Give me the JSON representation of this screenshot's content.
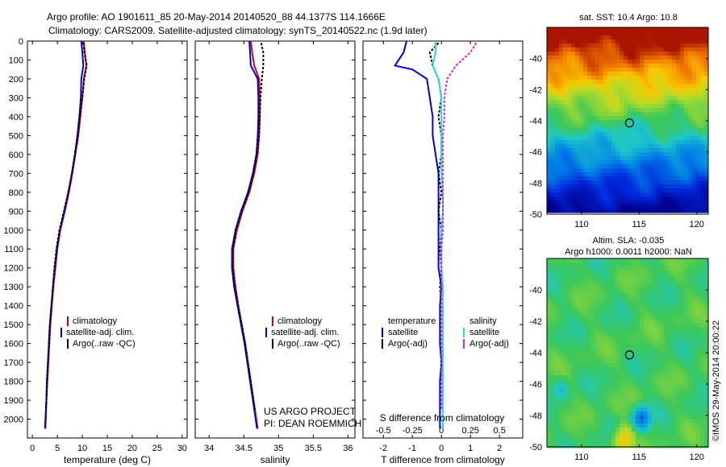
{
  "header": {
    "line1": "Argo profile: AO 1901611_85 20-May-2014 20140520_88 44.1377S 114.1666E",
    "line2": "Climatology: CARS2009. Satellite-adjusted climatology: synTS_20140522.nc (1.9d later)"
  },
  "colors": {
    "climatology": "#dd0000",
    "satellite": "#0000dd",
    "argo": "#000000",
    "sat_sal": "#22dddd",
    "argo_sal": "#dd22dd"
  },
  "chart_data": [
    {
      "type": "line",
      "id": "temperature",
      "xlabel": "temperature (deg C)",
      "ylim": [
        2100,
        0
      ],
      "xlim": [
        -1,
        31
      ],
      "xticks": [
        0,
        5,
        10,
        15,
        20,
        25,
        30
      ],
      "yticks": [
        0,
        100,
        200,
        300,
        400,
        500,
        600,
        700,
        800,
        900,
        1000,
        1100,
        1200,
        1300,
        1400,
        1500,
        1600,
        1700,
        1800,
        1900,
        2000
      ],
      "legend": [
        "climatology",
        "satellite-adj. clim.",
        "Argo(..raw -QC)"
      ],
      "series": [
        {
          "name": "climatology",
          "color": "#dd0000",
          "points": [
            [
              10.3,
              0
            ],
            [
              10.5,
              60
            ],
            [
              10.8,
              130
            ],
            [
              10.3,
              200
            ],
            [
              10.0,
              300
            ],
            [
              9.6,
              400
            ],
            [
              9.2,
              500
            ],
            [
              8.6,
              600
            ],
            [
              8.0,
              700
            ],
            [
              7.3,
              800
            ],
            [
              6.5,
              900
            ],
            [
              5.6,
              1000
            ],
            [
              5.0,
              1100
            ],
            [
              4.6,
              1200
            ],
            [
              4.2,
              1300
            ],
            [
              3.9,
              1400
            ],
            [
              3.6,
              1500
            ],
            [
              3.4,
              1600
            ],
            [
              3.2,
              1700
            ],
            [
              3.0,
              1800
            ],
            [
              2.8,
              1900
            ],
            [
              2.7,
              2000
            ],
            [
              2.6,
              2050
            ]
          ]
        },
        {
          "name": "satellite-adj. clim.",
          "color": "#0000dd",
          "points": [
            [
              9.8,
              0
            ],
            [
              10.0,
              60
            ],
            [
              10.2,
              130
            ],
            [
              9.8,
              200
            ],
            [
              9.7,
              300
            ],
            [
              9.4,
              400
            ],
            [
              9.0,
              500
            ],
            [
              8.5,
              600
            ],
            [
              7.9,
              700
            ],
            [
              7.2,
              800
            ],
            [
              6.4,
              900
            ],
            [
              5.5,
              1000
            ],
            [
              4.9,
              1100
            ],
            [
              4.5,
              1200
            ],
            [
              4.1,
              1300
            ],
            [
              3.8,
              1400
            ],
            [
              3.5,
              1500
            ],
            [
              3.3,
              1600
            ],
            [
              3.1,
              1700
            ],
            [
              2.9,
              1800
            ],
            [
              2.8,
              1900
            ],
            [
              2.6,
              2000
            ],
            [
              2.5,
              2050
            ]
          ]
        },
        {
          "name": "Argo(..raw -QC)",
          "color": "#000000",
          "dashed": true,
          "points": [
            [
              10.2,
              10
            ],
            [
              10.4,
              60
            ],
            [
              10.9,
              130
            ],
            [
              10.4,
              200
            ],
            [
              10.0,
              300
            ],
            [
              9.5,
              400
            ],
            [
              9.1,
              500
            ],
            [
              8.5,
              600
            ],
            [
              7.9,
              700
            ],
            [
              7.2,
              800
            ],
            [
              6.3,
              900
            ],
            [
              5.4,
              1000
            ],
            [
              4.8,
              1100
            ],
            [
              4.4,
              1200
            ],
            [
              4.1,
              1300
            ],
            [
              3.8,
              1400
            ],
            [
              3.5,
              1500
            ],
            [
              3.3,
              1600
            ],
            [
              3.1,
              1700
            ],
            [
              2.9,
              1800
            ],
            [
              2.8,
              1900
            ],
            [
              2.7,
              1950
            ]
          ]
        }
      ]
    },
    {
      "type": "line",
      "id": "salinity",
      "xlabel": "salinity",
      "ylim": [
        2100,
        0
      ],
      "xlim": [
        33.8,
        36.1
      ],
      "xticks": [
        34,
        34.5,
        35,
        35.5,
        36
      ],
      "legend": [
        "climatology",
        "satellite-adj. clim.",
        "Argo(..raw -QC)"
      ],
      "annotation": [
        "US ARGO PROJECT",
        "PI: DEAN ROEMMICH"
      ],
      "series": [
        {
          "name": "climatology",
          "color": "#dd0000",
          "points": [
            [
              34.6,
              0
            ],
            [
              34.62,
              60
            ],
            [
              34.65,
              130
            ],
            [
              34.72,
              200
            ],
            [
              34.73,
              300
            ],
            [
              34.73,
              400
            ],
            [
              34.72,
              500
            ],
            [
              34.7,
              600
            ],
            [
              34.65,
              700
            ],
            [
              34.58,
              800
            ],
            [
              34.48,
              900
            ],
            [
              34.4,
              1000
            ],
            [
              34.35,
              1100
            ],
            [
              34.35,
              1200
            ],
            [
              34.38,
              1300
            ],
            [
              34.42,
              1400
            ],
            [
              34.47,
              1500
            ],
            [
              34.52,
              1600
            ],
            [
              34.56,
              1700
            ],
            [
              34.6,
              1800
            ],
            [
              34.64,
              1900
            ],
            [
              34.68,
              2000
            ],
            [
              34.7,
              2050
            ]
          ]
        },
        {
          "name": "satellite-adj. clim.",
          "color": "#0000dd",
          "points": [
            [
              34.58,
              0
            ],
            [
              34.59,
              60
            ],
            [
              34.6,
              130
            ],
            [
              34.7,
              200
            ],
            [
              34.71,
              300
            ],
            [
              34.71,
              400
            ],
            [
              34.7,
              500
            ],
            [
              34.68,
              600
            ],
            [
              34.63,
              700
            ],
            [
              34.56,
              800
            ],
            [
              34.46,
              900
            ],
            [
              34.38,
              1000
            ],
            [
              34.33,
              1100
            ],
            [
              34.33,
              1200
            ],
            [
              34.36,
              1300
            ],
            [
              34.41,
              1400
            ],
            [
              34.46,
              1500
            ],
            [
              34.51,
              1600
            ],
            [
              34.55,
              1700
            ],
            [
              34.59,
              1800
            ],
            [
              34.63,
              1900
            ],
            [
              34.67,
              2000
            ],
            [
              34.69,
              2050
            ]
          ]
        },
        {
          "name": "Argo(..raw -QC)",
          "color": "#000000",
          "dashed": true,
          "points": [
            [
              34.75,
              10
            ],
            [
              34.78,
              60
            ],
            [
              34.78,
              130
            ],
            [
              34.76,
              200
            ],
            [
              34.74,
              300
            ],
            [
              34.73,
              400
            ],
            [
              34.72,
              500
            ],
            [
              34.69,
              600
            ],
            [
              34.64,
              700
            ],
            [
              34.57,
              800
            ],
            [
              34.47,
              900
            ],
            [
              34.39,
              1000
            ],
            [
              34.34,
              1100
            ],
            [
              34.34,
              1200
            ],
            [
              34.37,
              1300
            ],
            [
              34.42,
              1400
            ],
            [
              34.47,
              1500
            ],
            [
              34.52,
              1600
            ],
            [
              34.56,
              1700
            ],
            [
              34.6,
              1800
            ],
            [
              34.64,
              1900
            ],
            [
              34.66,
              1950
            ]
          ]
        }
      ]
    },
    {
      "type": "line",
      "id": "difference",
      "xlabel": "T difference from climatology",
      "xlabel_top": "S difference from climatology",
      "ylim": [
        2100,
        0
      ],
      "xlim": [
        -2.7,
        2.8
      ],
      "xticks": [
        -2,
        -1,
        0,
        1,
        2
      ],
      "sticks_labels": [
        "-0.5",
        "-0.25",
        "0",
        "0.25",
        "0.5"
      ],
      "sticks_pos": [
        -2,
        -1,
        0,
        1,
        2
      ],
      "legend_left_title": "temperature",
      "legend_right_title": "salinity",
      "legend": [
        "satellite",
        "Argo(-adj)",
        "satellite",
        "Argo(-adj)"
      ],
      "series": [
        {
          "name": "temperature satellite",
          "color": "#0000dd",
          "points": [
            [
              -1.2,
              0
            ],
            [
              -1.3,
              60
            ],
            [
              -1.6,
              130
            ],
            [
              -1.0,
              150
            ],
            [
              -0.5,
              200
            ],
            [
              -0.4,
              300
            ],
            [
              -0.3,
              400
            ],
            [
              -0.3,
              500
            ],
            [
              -0.2,
              600
            ],
            [
              -0.1,
              700
            ],
            [
              -0.1,
              800
            ],
            [
              -0.1,
              900
            ],
            [
              -0.1,
              1000
            ],
            [
              -0.1,
              1100
            ],
            [
              -0.1,
              1200
            ],
            [
              0,
              1300
            ],
            [
              -0.05,
              1400
            ],
            [
              -0.05,
              1500
            ],
            [
              -0.05,
              1600
            ],
            [
              0,
              1700
            ],
            [
              -0.05,
              1800
            ],
            [
              -0.05,
              1900
            ],
            [
              -0.05,
              2050
            ]
          ]
        },
        {
          "name": "temperature Argo(-adj)",
          "color": "#000000",
          "dashed": true,
          "points": [
            [
              -0.1,
              10
            ],
            [
              -0.4,
              60
            ],
            [
              -0.3,
              130
            ],
            [
              -0.1,
              200
            ],
            [
              0,
              300
            ],
            [
              -0.1,
              400
            ],
            [
              0,
              500
            ],
            [
              0,
              600
            ],
            [
              -0.1,
              700
            ],
            [
              0,
              800
            ],
            [
              -0.1,
              900
            ],
            [
              0,
              1000
            ],
            [
              -0.05,
              1100
            ],
            [
              0,
              1200
            ],
            [
              -0.05,
              1300
            ],
            [
              0,
              1400
            ],
            [
              -0.05,
              1500
            ],
            [
              0,
              1600
            ],
            [
              0,
              1700
            ],
            [
              0,
              1800
            ],
            [
              0,
              1900
            ],
            [
              0,
              1950
            ]
          ]
        },
        {
          "name": "salinity satellite",
          "color": "#22dddd",
          "points": [
            [
              -0.2,
              0
            ],
            [
              -0.2,
              60
            ],
            [
              -0.3,
              130
            ],
            [
              -0.1,
              200
            ],
            [
              0,
              300
            ],
            [
              0,
              400
            ],
            [
              0,
              500
            ],
            [
              0,
              600
            ],
            [
              0,
              700
            ],
            [
              0.05,
              800
            ],
            [
              0.05,
              900
            ],
            [
              0,
              1000
            ],
            [
              0,
              1100
            ],
            [
              0,
              1200
            ],
            [
              0.05,
              1300
            ],
            [
              0.05,
              1400
            ],
            [
              0.05,
              1500
            ],
            [
              0.05,
              1600
            ],
            [
              0.05,
              1700
            ],
            [
              0.05,
              1800
            ],
            [
              0.05,
              1900
            ],
            [
              0.05,
              2050
            ]
          ]
        },
        {
          "name": "salinity Argo(-adj)",
          "color": "#dd22dd",
          "dashed": true,
          "points": [
            [
              1.2,
              10
            ],
            [
              1.0,
              60
            ],
            [
              0.5,
              130
            ],
            [
              0.2,
              200
            ],
            [
              0.1,
              300
            ],
            [
              0.1,
              400
            ],
            [
              0.05,
              500
            ],
            [
              0.05,
              600
            ],
            [
              0.05,
              700
            ],
            [
              0.05,
              800
            ],
            [
              0.05,
              900
            ],
            [
              0.05,
              1000
            ],
            [
              0,
              1100
            ],
            [
              0,
              1200
            ],
            [
              0,
              1300
            ],
            [
              0,
              1400
            ],
            [
              0,
              1500
            ],
            [
              0,
              1600
            ],
            [
              0,
              1700
            ],
            [
              0,
              1800
            ],
            [
              0,
              1900
            ],
            [
              0,
              1950
            ]
          ]
        }
      ]
    },
    {
      "type": "heatmap",
      "id": "sst_map",
      "title": "sat. SST: 10.4 Argo: 10.8",
      "xlim": [
        107,
        121
      ],
      "ylim": [
        -50,
        -38
      ],
      "xticks": [
        110,
        115,
        120
      ],
      "yticks": [
        -40,
        -42,
        -44,
        -46,
        -48,
        -50
      ],
      "marker": [
        114.17,
        -44.14
      ]
    },
    {
      "type": "heatmap",
      "id": "sla_map",
      "title": "Altim. SLA: -0.035",
      "subtitle": "Argo h1000: 0.0011 h2000: NaN",
      "xlim": [
        107,
        121
      ],
      "ylim": [
        -50,
        -38
      ],
      "xticks": [
        110,
        115,
        120
      ],
      "yticks": [
        -40,
        -42,
        -44,
        -46,
        -48,
        -50
      ],
      "marker": [
        114.17,
        -44.14
      ]
    }
  ],
  "side_text": "©IMOS 29-May-2014 20:00:22"
}
